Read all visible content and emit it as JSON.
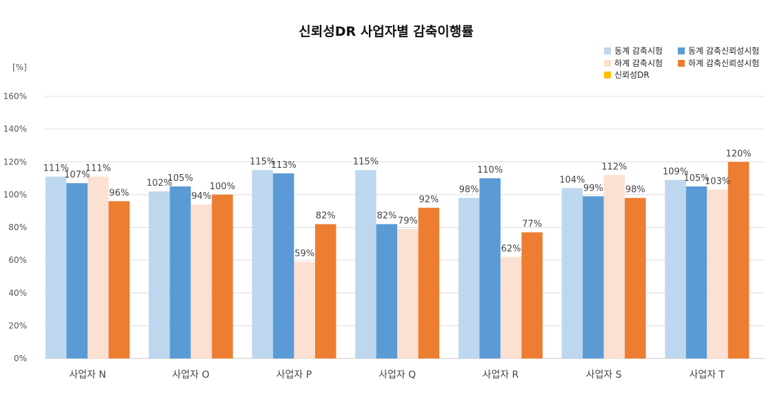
{
  "chart_data": {
    "type": "bar",
    "title": "신뢰성DR 사업자별 감축이행률",
    "unit_label": "[%]",
    "categories": [
      "사업자 N",
      "사업자 O",
      "사업자 P",
      "사업자 Q",
      "사업자 R",
      "사업자 S",
      "사업자 T"
    ],
    "series": [
      {
        "name": "동계 감축시험",
        "color": "#bdd7ee",
        "values": [
          111,
          102,
          115,
          115,
          98,
          104,
          109
        ],
        "labels": [
          "111%",
          "102%",
          "115%",
          "115%",
          "98%",
          "104%",
          "109%"
        ]
      },
      {
        "name": "동계 감축신뢰성시험",
        "color": "#5b9bd5",
        "values": [
          107,
          105,
          113,
          82,
          110,
          99,
          105
        ],
        "labels": [
          "107%",
          "105%",
          "113%",
          "82%",
          "110%",
          "99%",
          "105%"
        ]
      },
      {
        "name": "하계 감축시험",
        "color": "#fce0d2",
        "values": [
          111,
          94,
          59,
          79,
          62,
          112,
          103
        ],
        "labels": [
          "111%",
          "94%",
          "59%",
          "79%",
          "62%",
          "112%",
          "103%"
        ]
      },
      {
        "name": "하계 감축신뢰성시험",
        "color": "#ed7d31",
        "values": [
          96,
          100,
          82,
          92,
          77,
          98,
          120
        ],
        "labels": [
          "96%",
          "100%",
          "82%",
          "92%",
          "77%",
          "98%",
          "120%"
        ]
      },
      {
        "name": "신뢰성DR",
        "color": "#ffc000",
        "values": [
          null,
          null,
          null,
          null,
          null,
          null,
          null
        ],
        "labels": []
      }
    ],
    "yticks": [
      0,
      20,
      40,
      60,
      80,
      100,
      120,
      140,
      160
    ],
    "ytick_labels": [
      "0%",
      "20%",
      "40%",
      "60%",
      "80%",
      "100%",
      "120%",
      "140%",
      "160%"
    ],
    "ylim": [
      0,
      160
    ],
    "grid": true,
    "legend_position": "top-right"
  }
}
